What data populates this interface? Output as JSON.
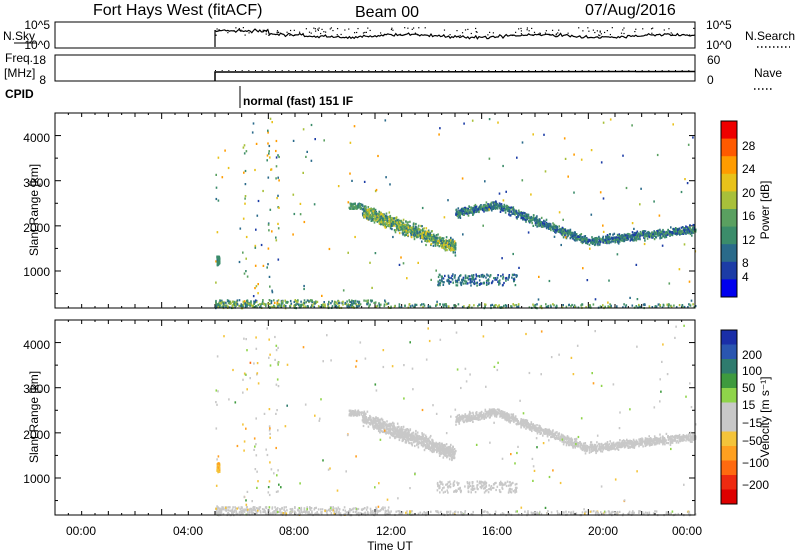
{
  "header": {
    "station": "Fort Hays West (fitACF)",
    "beam": "Beam 00",
    "date": "07/Aug/2016"
  },
  "noise_panel": {
    "left_label": "N.Sky",
    "right_label": "N.Search",
    "left_ticks": [
      "10^5",
      "10^0"
    ],
    "right_ticks": [
      "10^5",
      "10^0"
    ]
  },
  "freq_panel": {
    "left_label_line1": "Freq.",
    "left_label_line2": "[MHz]",
    "right_label": "Nave",
    "left_ticks": [
      "18",
      "8"
    ],
    "right_ticks": [
      "60",
      "0"
    ]
  },
  "cpid_panel": {
    "label": "CPID",
    "program": "normal (fast) 151 IF"
  },
  "x_axis": {
    "label": "Time UT",
    "ticks": [
      "00:00",
      "04:00",
      "08:00",
      "12:00",
      "16:00",
      "20:00",
      "00:00"
    ],
    "range_hours": [
      0,
      24
    ],
    "data_start_hour": 6.0
  },
  "power_panel": {
    "ylabel": "Slant Range [km]",
    "yticks": [
      "4000",
      "3000",
      "2000",
      "1000"
    ],
    "ytick_values": [
      4000,
      3000,
      2000,
      1000
    ],
    "ylim": [
      180,
      4500
    ],
    "colorbar_label": "Power [dB]",
    "colorbar_ticks": [
      "28",
      "24",
      "20",
      "16",
      "12",
      "8",
      "4"
    ],
    "colorbar_tick_values": [
      28,
      24,
      20,
      16,
      12,
      8,
      4
    ],
    "colorbar_range": [
      0,
      30
    ],
    "colors": [
      "#0000ee",
      "#1c3ca6",
      "#2a6a8a",
      "#3b8c6a",
      "#5aa060",
      "#a8c03a",
      "#e8c21a",
      "#ff9c00",
      "#ff5a00",
      "#ee0000"
    ]
  },
  "velocity_panel": {
    "ylabel": "Slant Range [km]",
    "yticks": [
      "4000",
      "3000",
      "2000",
      "1000"
    ],
    "ytick_values": [
      4000,
      3000,
      2000,
      1000
    ],
    "ylim": [
      180,
      4500
    ],
    "colorbar_label": "Velocity [m s⁻¹]",
    "colorbar_ticks": [
      "200",
      "100",
      "50",
      "15",
      "−15",
      "−50",
      "−100",
      "−200"
    ],
    "colorbar_tick_values": [
      200,
      100,
      50,
      15,
      -15,
      -50,
      -100,
      -200
    ],
    "colorbar_range": [
      -250,
      250
    ],
    "colors": [
      "#1a2ea8",
      "#2a56b0",
      "#2f7b6e",
      "#3e9a3e",
      "#8fd44a",
      "#c8c8c8",
      "#c8c8c8",
      "#f4c43a",
      "#ffa020",
      "#ff6a10",
      "#ee2a10",
      "#dd0000"
    ]
  },
  "chart_data": [
    {
      "type": "scatter",
      "title": "Power [dB]",
      "xlabel": "Time UT",
      "ylabel": "Slant Range [km]",
      "xlim": [
        0,
        24
      ],
      "ylim": [
        180,
        4500
      ],
      "series": [
        {
          "name": "",
          "x": [
            6.0,
            6.2,
            7.0,
            8.0,
            9.0,
            10.0,
            11.0,
            12.0
          ],
          "y": [
            250,
            260,
            270,
            250,
            260,
            250,
            255,
            260
          ]
        },
        {
          "name": "",
          "x": [
            11.5,
            12.0,
            12.5,
            13.0,
            13.5,
            14.0,
            14.5
          ],
          "y": [
            2300,
            2100,
            1900,
            1800,
            1700,
            1650,
            1700
          ]
        },
        {
          "name": "",
          "x": [
            15.0,
            15.5,
            16.0,
            16.5,
            17.0,
            17.5,
            18.0,
            19.0,
            20.0,
            21.0,
            22.0,
            23.0,
            23.8
          ],
          "y": [
            2300,
            2400,
            2450,
            2400,
            2300,
            2150,
            2000,
            1800,
            1700,
            1650,
            1700,
            1800,
            1950
          ]
        },
        {
          "name": "",
          "x": [
            14.5,
            15.0,
            15.5,
            16.0,
            16.5,
            17.0
          ],
          "y": [
            850,
            800,
            780,
            800,
            820,
            850
          ]
        }
      ]
    },
    {
      "type": "scatter",
      "title": "Velocity [m s⁻¹]",
      "xlabel": "Time UT",
      "ylabel": "Slant Range [km]",
      "xlim": [
        0,
        24
      ],
      "ylim": [
        180,
        4500
      ],
      "series": [
        {
          "name": "",
          "x": [
            6.0,
            7.0,
            8.0,
            9.0,
            10.0,
            11.0,
            12.0
          ],
          "y": [
            250,
            260,
            270,
            250,
            255,
            260,
            255
          ]
        },
        {
          "name": "",
          "x": [
            11.5,
            12.5,
            13.5,
            14.5,
            15.5,
            16.5,
            18.0,
            20.0,
            22.0,
            23.8
          ],
          "y": [
            2300,
            1900,
            1700,
            1700,
            2400,
            2350,
            2000,
            1700,
            1700,
            1950
          ]
        }
      ]
    }
  ]
}
